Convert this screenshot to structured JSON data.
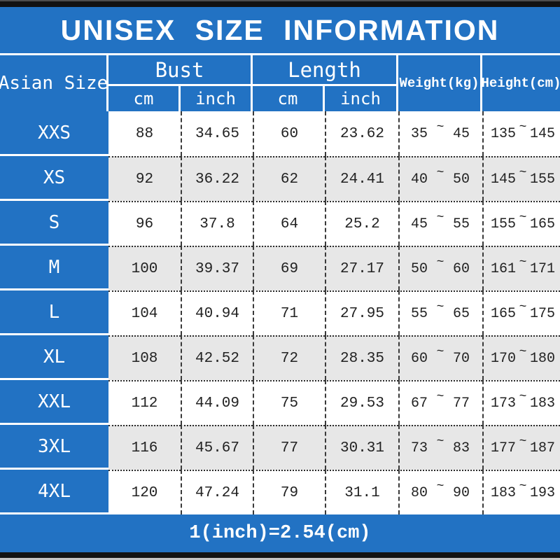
{
  "title": "UNISEX SIZE INFORMATION",
  "header": {
    "size": "Asian Size",
    "bust": "Bust",
    "length": "Length",
    "cm": "cm",
    "inch": "inch",
    "weight": "Weight(kg)",
    "height": "Height(cm)"
  },
  "tilde": "~",
  "footer_note": "1(inch)=2.54(cm)",
  "colors": {
    "blue": "#2272c3",
    "alt_row": "#e7e7e7",
    "text": "#222222",
    "bar": "#121212"
  },
  "chart_data": {
    "type": "table",
    "title": "UNISEX SIZE INFORMATION",
    "columns": [
      "Asian Size",
      "Bust cm",
      "Bust inch",
      "Length cm",
      "Length inch",
      "Weight(kg)",
      "Height(cm)"
    ],
    "note": "1(inch)=2.54(cm)",
    "rows": [
      {
        "size": "XXS",
        "bust_cm": "88",
        "bust_inch": "34.65",
        "length_cm": "60",
        "length_inch": "23.62",
        "weight_min": "35",
        "weight_max": "45",
        "height_min": "135",
        "height_max": "145"
      },
      {
        "size": "XS",
        "bust_cm": "92",
        "bust_inch": "36.22",
        "length_cm": "62",
        "length_inch": "24.41",
        "weight_min": "40",
        "weight_max": "50",
        "height_min": "145",
        "height_max": "155"
      },
      {
        "size": "S",
        "bust_cm": "96",
        "bust_inch": "37.8",
        "length_cm": "64",
        "length_inch": "25.2",
        "weight_min": "45",
        "weight_max": "55",
        "height_min": "155",
        "height_max": "165"
      },
      {
        "size": "M",
        "bust_cm": "100",
        "bust_inch": "39.37",
        "length_cm": "69",
        "length_inch": "27.17",
        "weight_min": "50",
        "weight_max": "60",
        "height_min": "161",
        "height_max": "171"
      },
      {
        "size": "L",
        "bust_cm": "104",
        "bust_inch": "40.94",
        "length_cm": "71",
        "length_inch": "27.95",
        "weight_min": "55",
        "weight_max": "65",
        "height_min": "165",
        "height_max": "175"
      },
      {
        "size": "XL",
        "bust_cm": "108",
        "bust_inch": "42.52",
        "length_cm": "72",
        "length_inch": "28.35",
        "weight_min": "60",
        "weight_max": "70",
        "height_min": "170",
        "height_max": "180"
      },
      {
        "size": "XXL",
        "bust_cm": "112",
        "bust_inch": "44.09",
        "length_cm": "75",
        "length_inch": "29.53",
        "weight_min": "67",
        "weight_max": "77",
        "height_min": "173",
        "height_max": "183"
      },
      {
        "size": "3XL",
        "bust_cm": "116",
        "bust_inch": "45.67",
        "length_cm": "77",
        "length_inch": "30.31",
        "weight_min": "73",
        "weight_max": "83",
        "height_min": "177",
        "height_max": "187"
      },
      {
        "size": "4XL",
        "bust_cm": "120",
        "bust_inch": "47.24",
        "length_cm": "79",
        "length_inch": "31.1",
        "weight_min": "80",
        "weight_max": "90",
        "height_min": "183",
        "height_max": "193"
      }
    ]
  }
}
